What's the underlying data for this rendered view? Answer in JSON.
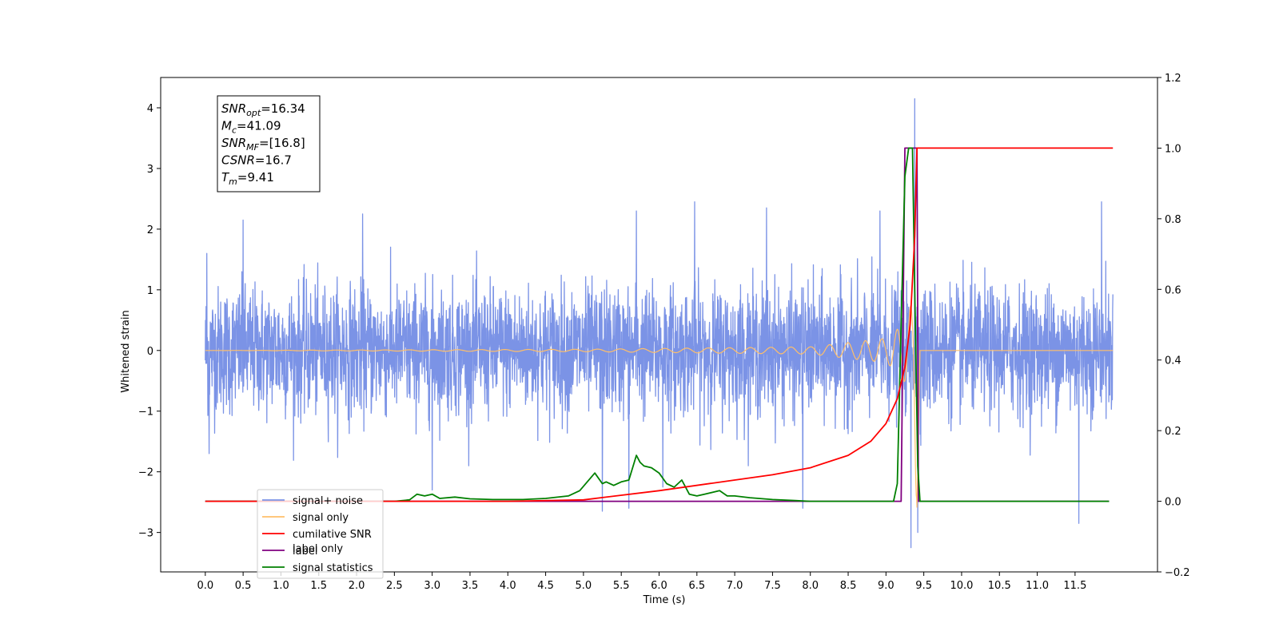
{
  "chart_data": {
    "type": "line",
    "title": "",
    "xlabel": "Time (s)",
    "ylabel": "Whitened strain",
    "xlim": [
      -0.59,
      12.59
    ],
    "ylim": [
      -3.65,
      4.5
    ],
    "y2lim": [
      -0.2,
      1.2
    ],
    "xticks": [
      "0.0",
      "0.5",
      "1.0",
      "1.5",
      "2.0",
      "2.5",
      "3.0",
      "3.5",
      "4.0",
      "4.5",
      "5.0",
      "5.5",
      "6.0",
      "6.5",
      "7.0",
      "7.5",
      "8.0",
      "8.5",
      "9.0",
      "9.5",
      "10.0",
      "10.5",
      "11.0",
      "11.5"
    ],
    "yticks": [
      "4",
      "3",
      "2",
      "1",
      "0",
      "−1",
      "−2",
      "−3"
    ],
    "y2ticks": [
      "1.2",
      "1.0",
      "0.8",
      "0.6",
      "0.4",
      "0.2",
      "0.0",
      "−0.2"
    ],
    "grid": false,
    "legend_position": "bottom-left",
    "legend": [
      {
        "name": "signal+ noise",
        "color": "#7b93e6"
      },
      {
        "name": "signal only",
        "color": "#ffbf69"
      },
      {
        "name": "cumilative SNR",
        "color": "#ff0000"
      },
      {
        "name": "label",
        "color": "#800080"
      },
      {
        "name": "signal statistics",
        "color": "#008000"
      }
    ],
    "legend_hidden_text": "label only",
    "annotation": {
      "lines": [
        {
          "sym": "SNR",
          "sub": "opt",
          "val": "=16.34"
        },
        {
          "sym": "M",
          "sub": "c",
          "val": "=41.09"
        },
        {
          "sym": "SNR",
          "sub": "MF",
          "val": "=[16.8]"
        },
        {
          "sym": "CSNR",
          "sub": "",
          "val": "=16.7"
        },
        {
          "sym": "T",
          "sub": "m",
          "val": "=9.41"
        }
      ]
    },
    "series": [
      {
        "name": "signal+ noise",
        "axis": "left",
        "color": "#7b93e6",
        "x_range": [
          0.0,
          12.0
        ],
        "envelope_upper_approx": 1.4,
        "envelope_lower_approx": -1.3,
        "peaks": [
          [
            0.02,
            1.6
          ],
          [
            0.5,
            2.15
          ],
          [
            2.08,
            2.25
          ],
          [
            5.7,
            2.3
          ],
          [
            6.47,
            2.45
          ],
          [
            7.42,
            2.35
          ],
          [
            8.92,
            2.3
          ],
          [
            9.38,
            4.15
          ],
          [
            11.85,
            2.45
          ]
        ],
        "troughs": [
          [
            0.05,
            -1.7
          ],
          [
            3.0,
            -2.3
          ],
          [
            5.25,
            -2.65
          ],
          [
            5.6,
            -2.6
          ],
          [
            6.05,
            -2.25
          ],
          [
            7.9,
            -2.6
          ],
          [
            9.33,
            -3.25
          ],
          [
            9.42,
            -3.0
          ],
          [
            11.55,
            -2.85
          ]
        ]
      },
      {
        "name": "signal only",
        "axis": "left",
        "color": "#ffbf69",
        "x": [
          0.0,
          5.0,
          8.0,
          9.0,
          9.2,
          9.35,
          9.41,
          9.45,
          12.0
        ],
        "amplitude": [
          0.0,
          0.02,
          0.06,
          0.2,
          0.4,
          0.8,
          2.7,
          0.0,
          0.0
        ]
      },
      {
        "name": "cumilative SNR",
        "axis": "right",
        "color": "#ff0000",
        "x": [
          0.0,
          4.0,
          5.0,
          6.0,
          7.0,
          7.5,
          8.0,
          8.5,
          8.8,
          9.0,
          9.15,
          9.25,
          9.32,
          9.38,
          9.41,
          9.45,
          12.0
        ],
        "values": [
          0.0,
          0.0,
          0.004,
          0.03,
          0.06,
          0.075,
          0.095,
          0.13,
          0.17,
          0.22,
          0.29,
          0.38,
          0.5,
          0.75,
          1.0,
          1.0,
          1.0
        ]
      },
      {
        "name": "label",
        "axis": "right",
        "color": "#800080",
        "x": [
          0.0,
          9.2,
          9.25,
          9.41,
          9.43,
          11.95
        ],
        "values": [
          0.0,
          0.0,
          1.0,
          1.0,
          0.0,
          0.0
        ]
      },
      {
        "name": "signal statistics",
        "axis": "right",
        "color": "#008000",
        "x": [
          0.0,
          2.5,
          2.7,
          2.8,
          2.9,
          3.0,
          3.1,
          3.3,
          3.5,
          3.8,
          4.2,
          4.5,
          4.8,
          4.95,
          5.05,
          5.15,
          5.25,
          5.3,
          5.4,
          5.5,
          5.6,
          5.7,
          5.75,
          5.8,
          5.9,
          6.0,
          6.1,
          6.2,
          6.3,
          6.4,
          6.5,
          6.6,
          6.8,
          6.9,
          7.0,
          7.2,
          7.5,
          7.8,
          8.0,
          9.1,
          9.15,
          9.2,
          9.25,
          9.3,
          9.35,
          9.38,
          9.42,
          9.45,
          11.95
        ],
        "values": [
          0.0,
          0.0,
          0.004,
          0.02,
          0.015,
          0.02,
          0.008,
          0.012,
          0.007,
          0.005,
          0.005,
          0.008,
          0.015,
          0.03,
          0.055,
          0.08,
          0.05,
          0.055,
          0.045,
          0.055,
          0.06,
          0.13,
          0.11,
          0.1,
          0.095,
          0.08,
          0.05,
          0.04,
          0.06,
          0.02,
          0.015,
          0.02,
          0.03,
          0.015,
          0.015,
          0.01,
          0.005,
          0.002,
          0.0,
          0.0,
          0.05,
          0.5,
          0.92,
          1.0,
          1.0,
          0.6,
          0.1,
          0.0,
          0.0
        ]
      }
    ]
  }
}
